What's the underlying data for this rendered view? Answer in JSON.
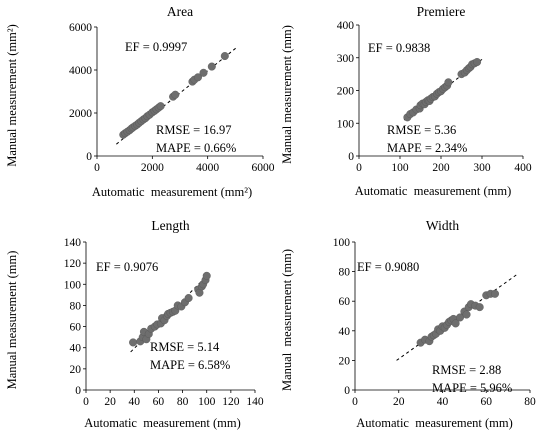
{
  "chart_data": [
    {
      "type": "scatter",
      "title": "Area",
      "xlabel": "Automatic  measurement (mm²)",
      "ylabel": "Manual measurement (mm²)",
      "xlim": [
        0,
        6000
      ],
      "ylim": [
        0,
        6000
      ],
      "xticks": [
        0,
        2000,
        4000,
        6000
      ],
      "yticks": [
        0,
        2000,
        4000,
        6000
      ],
      "ef_text": "EF = 0.9997",
      "rmse_text": "RMSE = 16.97",
      "mape_text": "MAPE = 0.66%",
      "trendline": [
        [
          700,
          550
        ],
        [
          5050,
          5050
        ]
      ],
      "points": [
        [
          950,
          990
        ],
        [
          1020,
          1060
        ],
        [
          1100,
          1130
        ],
        [
          1180,
          1200
        ],
        [
          1250,
          1280
        ],
        [
          1300,
          1330
        ],
        [
          1380,
          1400
        ],
        [
          1450,
          1460
        ],
        [
          1520,
          1540
        ],
        [
          1600,
          1620
        ],
        [
          1680,
          1700
        ],
        [
          1750,
          1760
        ],
        [
          1820,
          1850
        ],
        [
          1900,
          1920
        ],
        [
          2000,
          2030
        ],
        [
          2080,
          2100
        ],
        [
          2150,
          2170
        ],
        [
          2230,
          2250
        ],
        [
          2300,
          2320
        ],
        [
          2750,
          2760
        ],
        [
          2830,
          2850
        ],
        [
          3450,
          3460
        ],
        [
          3520,
          3550
        ],
        [
          3650,
          3660
        ],
        [
          3850,
          3870
        ],
        [
          4150,
          4160
        ],
        [
          4620,
          4650
        ]
      ]
    },
    {
      "type": "scatter",
      "title": "Premiere",
      "xlabel": "Automatic  measurement (mm)",
      "ylabel": "Manual measurement (mm)",
      "xlim": [
        0,
        400
      ],
      "ylim": [
        0,
        400
      ],
      "xticks": [
        0,
        100,
        200,
        300,
        400
      ],
      "yticks": [
        0,
        100,
        200,
        300,
        400
      ],
      "ef_text": "EF = 0.9838",
      "rmse_text": "RMSE = 5.36",
      "mape_text": "MAPE = 2.34%",
      "trendline": [
        [
          110,
          110
        ],
        [
          300,
          295
        ]
      ],
      "points": [
        [
          118,
          118
        ],
        [
          125,
          128
        ],
        [
          132,
          133
        ],
        [
          140,
          142
        ],
        [
          148,
          145
        ],
        [
          150,
          155
        ],
        [
          155,
          160
        ],
        [
          160,
          158
        ],
        [
          163,
          165
        ],
        [
          168,
          170
        ],
        [
          172,
          168
        ],
        [
          175,
          175
        ],
        [
          180,
          180
        ],
        [
          185,
          182
        ],
        [
          190,
          190
        ],
        [
          195,
          195
        ],
        [
          200,
          198
        ],
        [
          205,
          205
        ],
        [
          210,
          210
        ],
        [
          215,
          215
        ],
        [
          218,
          225
        ],
        [
          250,
          250
        ],
        [
          258,
          255
        ],
        [
          263,
          262
        ],
        [
          268,
          268
        ],
        [
          272,
          272
        ],
        [
          276,
          280
        ],
        [
          282,
          283
        ],
        [
          288,
          287
        ]
      ]
    },
    {
      "type": "scatter",
      "title": "Length",
      "xlabel": "Automatic  measurement (mm)",
      "ylabel": "Manual measurement (mm)",
      "xlim": [
        0,
        140
      ],
      "ylim": [
        0,
        140
      ],
      "xticks": [
        0,
        20,
        40,
        60,
        80,
        100,
        120,
        140
      ],
      "yticks": [
        0,
        20,
        40,
        60,
        80,
        100,
        120,
        140
      ],
      "ef_text": "EF = 0.9076",
      "rmse_text": "RMSE = 5.14",
      "mape_text": "MAPE = 6.58%",
      "trendline": [
        [
          37,
          36
        ],
        [
          102,
          110
        ]
      ],
      "points": [
        [
          39,
          45
        ],
        [
          45,
          46
        ],
        [
          47,
          50
        ],
        [
          48,
          55
        ],
        [
          50,
          48
        ],
        [
          52,
          53
        ],
        [
          54,
          58
        ],
        [
          57,
          60
        ],
        [
          59,
          62
        ],
        [
          62,
          63
        ],
        [
          63,
          68
        ],
        [
          65,
          66
        ],
        [
          67,
          70
        ],
        [
          68,
          72
        ],
        [
          70,
          73
        ],
        [
          72,
          74
        ],
        [
          74,
          75
        ],
        [
          76,
          80
        ],
        [
          79,
          79
        ],
        [
          82,
          83
        ],
        [
          85,
          87
        ],
        [
          93,
          95
        ],
        [
          94,
          92
        ],
        [
          96,
          98
        ],
        [
          97,
          100
        ],
        [
          99,
          104
        ],
        [
          100,
          108
        ]
      ]
    },
    {
      "type": "scatter",
      "title": "Width",
      "xlabel": "Automatic  measurement (mm)",
      "ylabel": "Manual  measurement (mm)",
      "xlim": [
        0,
        80
      ],
      "ylim": [
        0,
        100
      ],
      "xticks": [
        0,
        20,
        40,
        60,
        80
      ],
      "yticks": [
        0,
        20,
        40,
        60,
        80,
        100
      ],
      "ef_text": "EF = 0.9080",
      "rmse_text": "RMSE = 2.88",
      "mape_text": "MAPE = 5.96%",
      "trendline": [
        [
          19,
          20
        ],
        [
          74,
          78
        ]
      ],
      "points": [
        [
          30,
          32
        ],
        [
          32,
          34
        ],
        [
          34,
          33
        ],
        [
          35,
          36
        ],
        [
          36,
          37
        ],
        [
          37,
          38
        ],
        [
          38,
          41
        ],
        [
          39,
          40
        ],
        [
          40,
          43
        ],
        [
          41,
          42
        ],
        [
          42,
          44
        ],
        [
          43,
          46
        ],
        [
          44,
          47
        ],
        [
          45,
          48
        ],
        [
          46,
          45
        ],
        [
          48,
          49
        ],
        [
          50,
          53
        ],
        [
          51,
          51
        ],
        [
          52,
          56
        ],
        [
          53,
          58
        ],
        [
          55,
          57
        ],
        [
          57,
          56
        ],
        [
          60,
          64
        ],
        [
          62,
          65
        ],
        [
          64,
          65
        ]
      ]
    }
  ]
}
